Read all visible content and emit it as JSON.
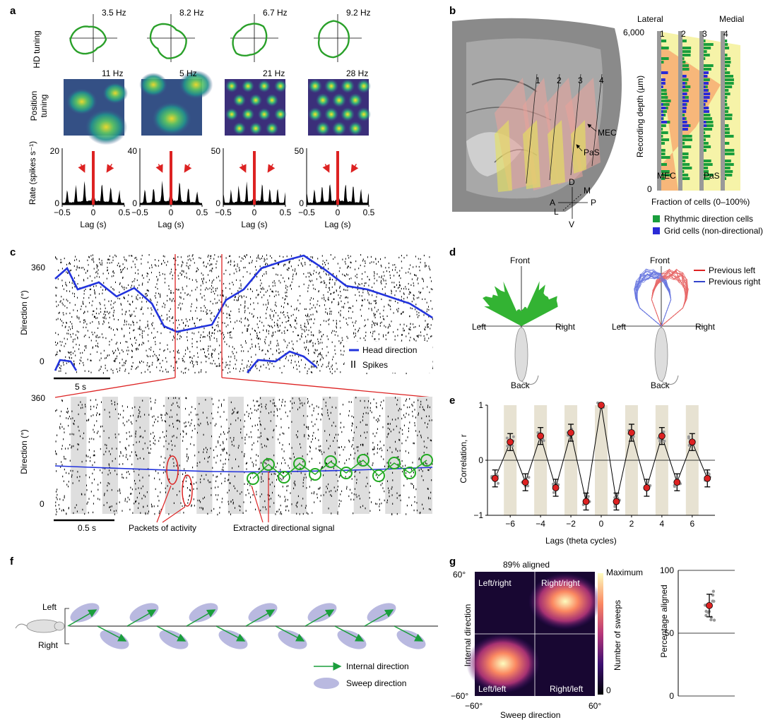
{
  "panel_labels": {
    "a": "a",
    "b": "b",
    "c": "c",
    "d": "d",
    "e": "e",
    "f": "f",
    "g": "g"
  },
  "panel_a": {
    "hd_label": "HD tuning",
    "pos_label_1": "Position",
    "pos_label_2": "tuning",
    "rate_label": "Rate (spikes s⁻¹)",
    "lag_label": "Lag (s)",
    "hd_rates": [
      "3.5 Hz",
      "8.2 Hz",
      "6.7 Hz",
      "9.2 Hz"
    ],
    "pos_rates": [
      "11 Hz",
      "5 Hz",
      "21 Hz",
      "28 Hz"
    ],
    "ymax": [
      "20",
      "40",
      "50",
      "50"
    ],
    "ticks": [
      "−0.5",
      "0",
      "0.5"
    ],
    "zero": "0"
  },
  "panel_b": {
    "lateral": "Lateral",
    "medial": "Medial",
    "depth_max": "6,000",
    "depth_min": "0",
    "shank_numbers": [
      "1",
      "2",
      "3",
      "4"
    ],
    "ylabel": "Recording depth (µm)",
    "xlabel": "Fraction of cells (0–100%)",
    "region_mec": "MEC",
    "region_pas": "PaS",
    "legend_rhythmic": "Rhythmic direction cells",
    "legend_grid": "Grid cells (non-directional)",
    "axes": {
      "D": "D",
      "V": "V",
      "A": "A",
      "P": "P",
      "M": "M",
      "L": "L"
    },
    "colors": {
      "rhythmic": "#1a9e3c",
      "grid": "#2b2bd6",
      "mec": "#f7b77a",
      "pas": "#f6f3a8"
    }
  },
  "panel_c": {
    "ylabel": "Direction (°)",
    "y_top": "360",
    "y_bottom": "0",
    "legend_hd": "Head direction",
    "legend_spikes": "Spikes",
    "scale_top": "5 s",
    "scale_bottom": "0.5 s",
    "annot_packets": "Packets of activity",
    "annot_signal": "Extracted directional signal",
    "colors": {
      "hd": "#2233dd",
      "marker": "#dd2222",
      "extracted": "#22aa22"
    }
  },
  "panel_d": {
    "front": "Front",
    "back": "Back",
    "left": "Left",
    "right": "Right",
    "legend_left": "Previous left",
    "legend_right": "Previous right"
  },
  "panel_e": {
    "chart_data": {
      "type": "scatter",
      "x": [
        -7,
        -6,
        -5,
        -4,
        -3,
        -2,
        -1,
        0,
        1,
        2,
        3,
        4,
        5,
        6,
        7
      ],
      "values": [
        -0.33,
        0.33,
        -0.4,
        0.44,
        -0.5,
        0.5,
        -0.75,
        1.0,
        -0.75,
        0.5,
        -0.5,
        0.44,
        -0.4,
        0.33,
        -0.33
      ],
      "xlabel": "Lags (theta cycles)",
      "ylabel": "Correlation, r",
      "xticks": [
        "−6",
        "−4",
        "−2",
        "0",
        "2",
        "4",
        "6"
      ],
      "yticks": [
        "1",
        "0",
        "−1"
      ],
      "ylim": [
        -1,
        1
      ]
    }
  },
  "panel_f": {
    "left": "Left",
    "right": "Right",
    "legend_internal": "Internal direction",
    "legend_sweep": "Sweep direction"
  },
  "panel_g": {
    "title": "89% aligned",
    "quadrants": [
      "Left/right",
      "Right/right",
      "Left/left",
      "Right/left"
    ],
    "ylabel": "Internal direction",
    "xlabel": "Sweep direction",
    "ticks": {
      "y_top": "60°",
      "y_bottom": "−60°",
      "x_left": "−60°",
      "x_right": "60°"
    },
    "cbar_max": "Maximum",
    "cbar_label": "Number of sweeps",
    "cbar_zero": "0",
    "pct": {
      "chart_data": {
        "type": "scatter",
        "ylabel": "Percentage aligned",
        "yticks": [
          "100",
          "50",
          "0"
        ],
        "ylim": [
          0,
          100
        ],
        "mean": 72,
        "sd_low": 63,
        "sd_high": 81
      }
    }
  }
}
